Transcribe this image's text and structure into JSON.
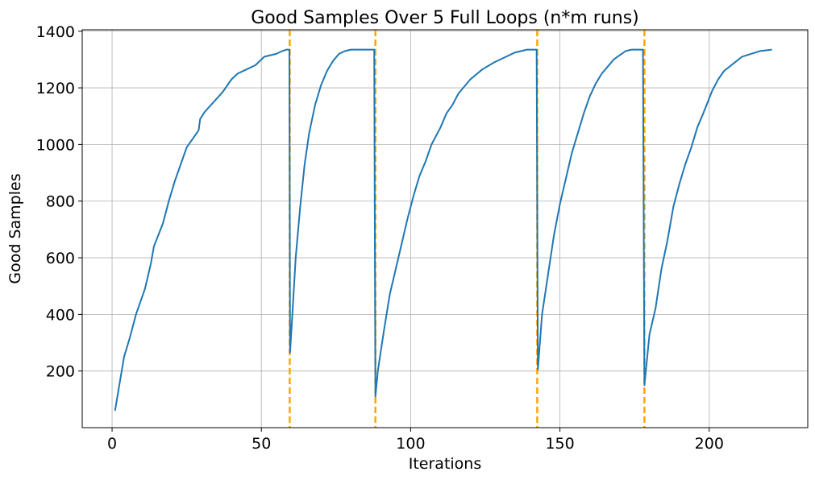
{
  "chart_data": {
    "type": "line",
    "title": "Good Samples Over 5 Full Loops (n*m runs)",
    "xlabel": "Iterations",
    "ylabel": "Good Samples",
    "xlim": [
      -10,
      233
    ],
    "ylim": [
      0,
      1405
    ],
    "xticks": [
      0,
      50,
      100,
      150,
      200
    ],
    "yticks": [
      200,
      400,
      600,
      800,
      1000,
      1200,
      1400
    ],
    "grid": true,
    "colors": {
      "series": "#1f77b4",
      "vline": "#ffa500",
      "grid": "#b0b0b0"
    },
    "vlines": [
      59.5,
      88.2,
      142.4,
      178.3
    ],
    "series": [
      {
        "name": "Good Samples",
        "x": [
          1,
          4,
          6,
          8,
          11,
          13,
          14,
          17,
          19,
          21,
          23,
          25,
          27,
          29,
          29.5,
          31,
          34,
          37,
          40,
          42,
          45,
          48,
          50,
          51,
          55,
          57,
          58.5,
          59.4,
          59.6,
          60.5,
          61.5,
          63,
          64.5,
          66,
          68,
          70,
          72,
          74,
          76,
          78,
          80,
          82,
          85,
          87.8,
          88.2,
          89,
          91,
          93,
          95,
          97,
          99,
          101,
          103,
          105,
          107,
          110,
          112,
          114,
          116,
          120,
          124,
          128,
          132,
          135,
          139,
          142.2,
          142.6,
          144,
          146,
          148,
          150,
          152,
          154,
          156,
          158,
          160,
          162,
          164,
          166,
          168,
          170,
          172,
          174,
          176,
          177.8,
          178.3,
          180,
          182,
          184,
          186,
          188,
          190,
          192,
          194,
          196,
          198,
          201,
          203,
          205,
          208,
          211,
          214,
          217,
          221
        ],
        "values": [
          60,
          250,
          320,
          400,
          490,
          580,
          640,
          720,
          800,
          870,
          930,
          990,
          1020,
          1050,
          1090,
          1115,
          1150,
          1185,
          1230,
          1250,
          1265,
          1280,
          1300,
          1310,
          1320,
          1330,
          1335,
          1335,
          265,
          420,
          600,
          780,
          930,
          1040,
          1140,
          1210,
          1260,
          1295,
          1320,
          1330,
          1335,
          1335,
          1335,
          1335,
          110,
          200,
          340,
          470,
          560,
          650,
          740,
          820,
          890,
          940,
          1000,
          1060,
          1110,
          1140,
          1180,
          1230,
          1265,
          1290,
          1310,
          1325,
          1335,
          1335,
          205,
          400,
          540,
          680,
          790,
          880,
          970,
          1040,
          1110,
          1170,
          1215,
          1250,
          1275,
          1300,
          1315,
          1330,
          1335,
          1335,
          1335,
          150,
          330,
          420,
          560,
          660,
          780,
          860,
          930,
          990,
          1060,
          1110,
          1190,
          1230,
          1260,
          1285,
          1310,
          1320,
          1330,
          1335
        ]
      }
    ]
  }
}
